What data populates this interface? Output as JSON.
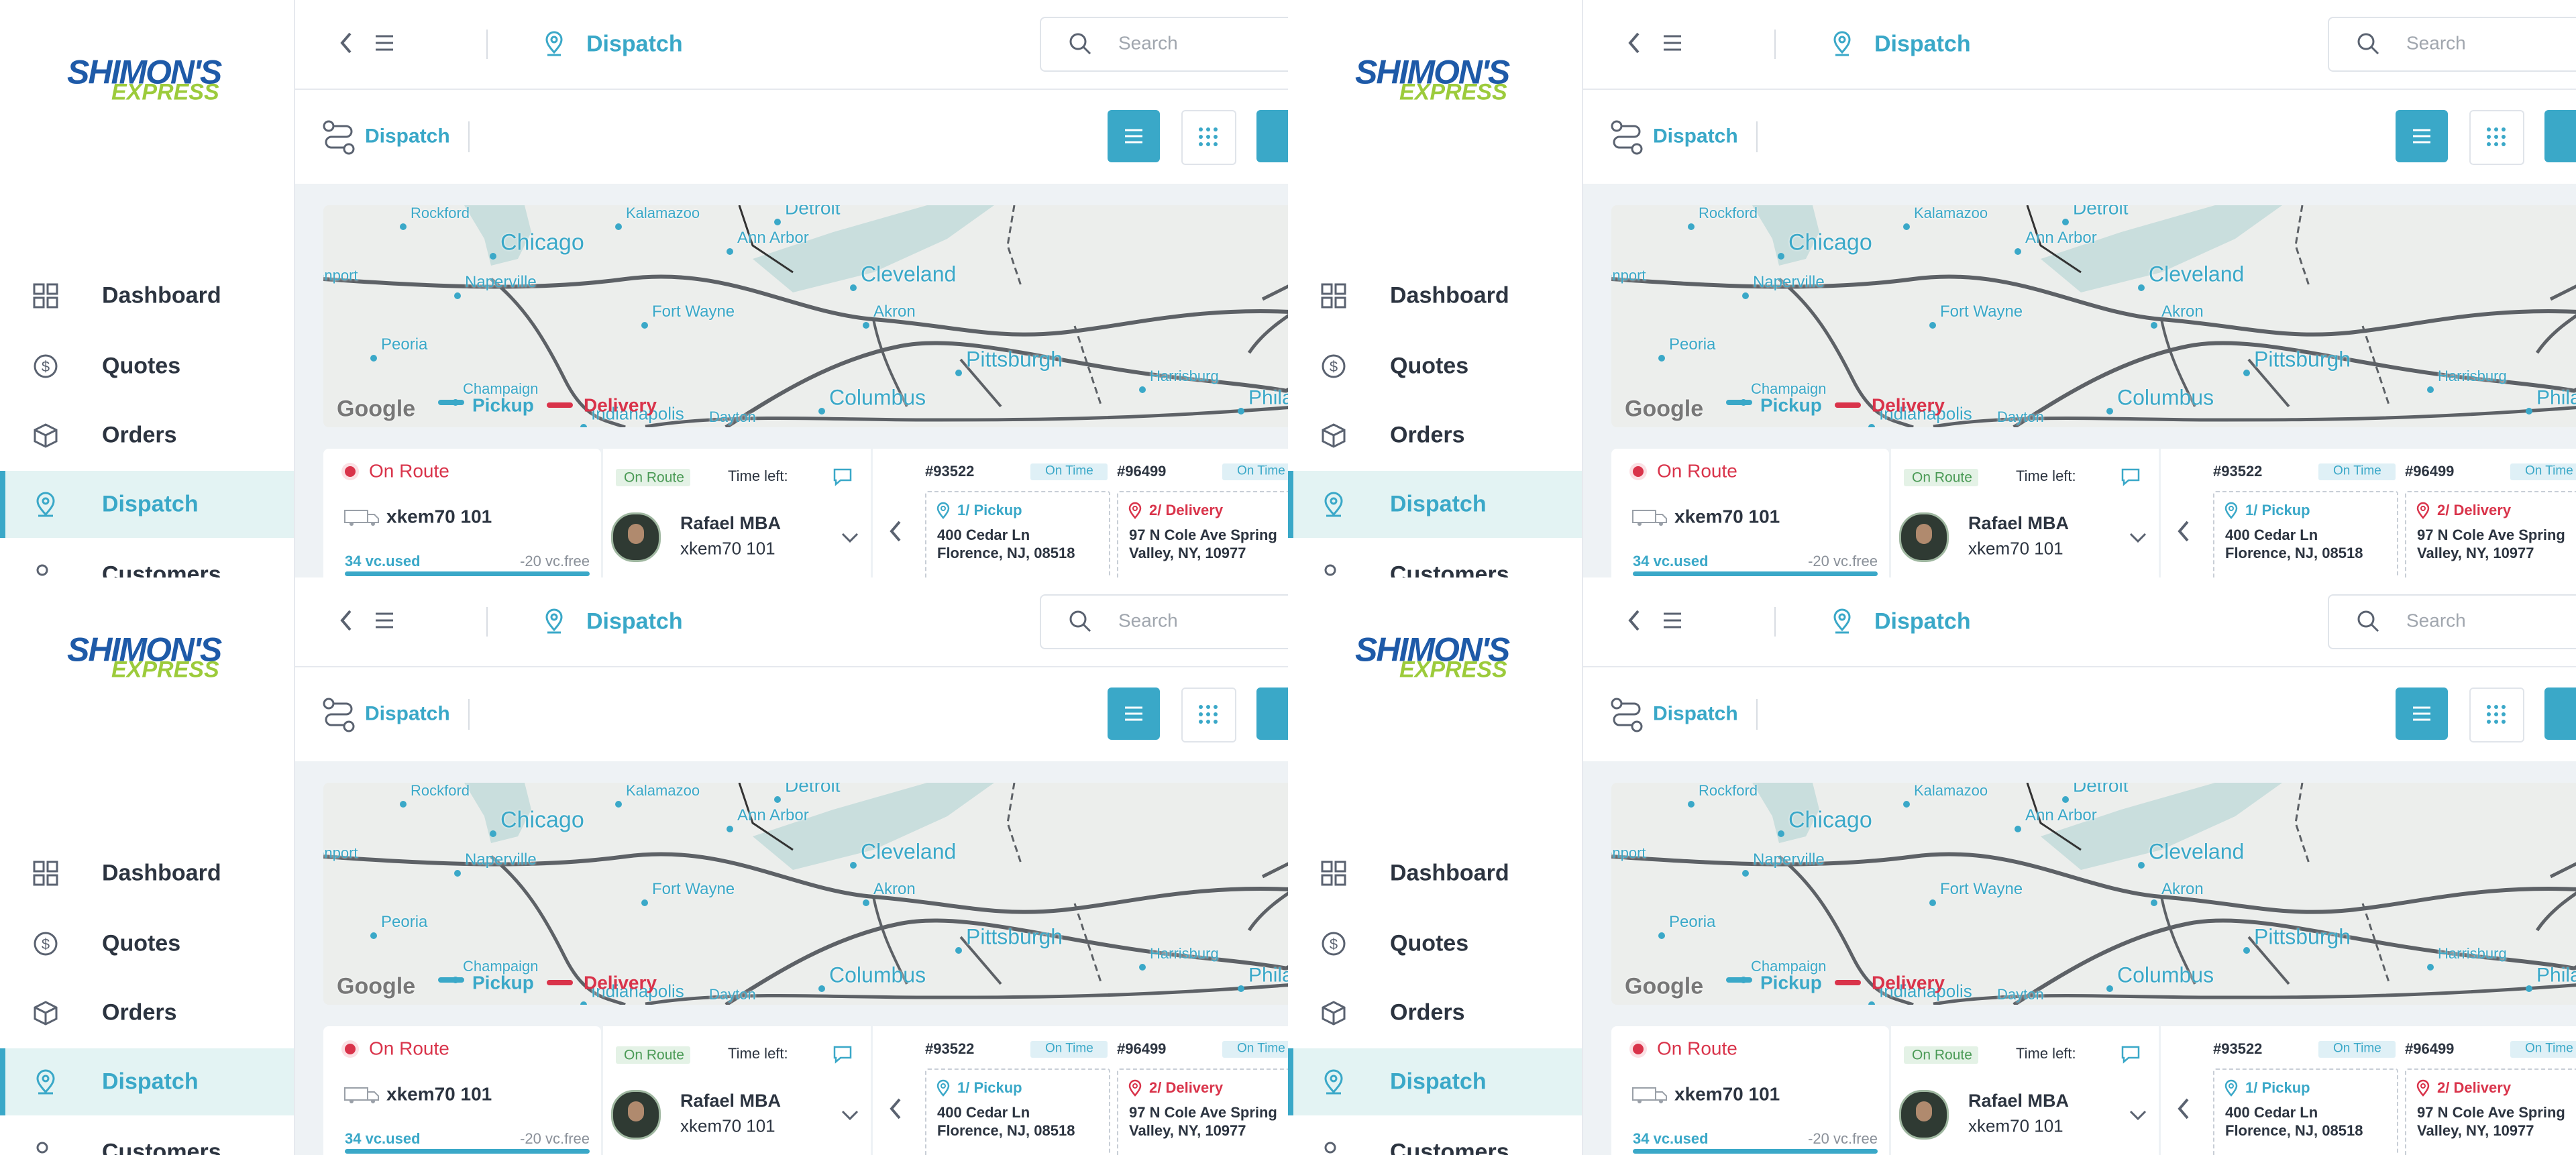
{
  "sidebar": {
    "logo_top": "SHIMON'S",
    "logo_bottom": "EXPRESS",
    "nav": [
      "Dashboard",
      "Quotes",
      "Orders",
      "Dispatch",
      "Customers"
    ]
  },
  "topbar": {
    "page": "Dispatch",
    "search_placeholder": "Search"
  },
  "toolbar": {
    "title": "Dispatch"
  },
  "map": {
    "cities": [
      "Rockford",
      "Kalamazoo",
      "Detroit",
      "Chicago",
      "Ann Arbor",
      "Cleveland",
      "Naperville",
      "Fort Wayne",
      "Akron",
      "Peoria",
      "Pittsburgh",
      "Champaign",
      "Columbus",
      "Indianapolis",
      "Dayton",
      "Harrisburg",
      "Philadelphia",
      "Davenport"
    ],
    "legend": [
      "Pickup",
      "Delivery"
    ],
    "attribution": "Google"
  },
  "driver_card": {
    "status": "On Route",
    "truck": "xkem70 101",
    "used": "34 vc.used",
    "free": "-20 vc.free"
  },
  "assignment_card": {
    "status": "On Route",
    "time_left": "Time left:",
    "driver": "Rafael MBA",
    "truck": "xkem70 101"
  },
  "orders": [
    {
      "id": "#93522",
      "status": "On Time",
      "stop": "1/ Pickup",
      "address": [
        "400 Cedar Ln",
        "Florence, NJ, 08518"
      ]
    },
    {
      "id": "#96499",
      "status": "On Time",
      "stop": "2/ Delivery",
      "address": [
        "97 N Cole Ave Spring",
        "Valley, NY, 10977"
      ]
    }
  ]
}
